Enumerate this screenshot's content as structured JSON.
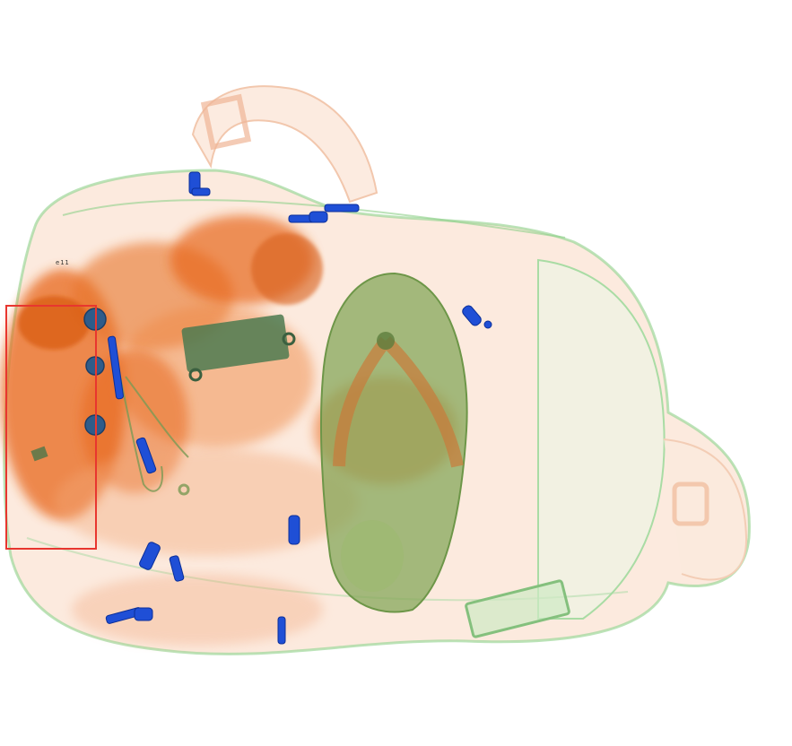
{
  "image": {
    "kind": "x-ray baggage scan",
    "background": "#ffffff",
    "palette": {
      "organic": "#e8671a",
      "mixed": "#7fbf73",
      "metal": "#1f4fd6",
      "detection_box": "#e8362f"
    }
  },
  "detection": {
    "label": "",
    "color": "#e8362f"
  },
  "micro_text": "e11"
}
